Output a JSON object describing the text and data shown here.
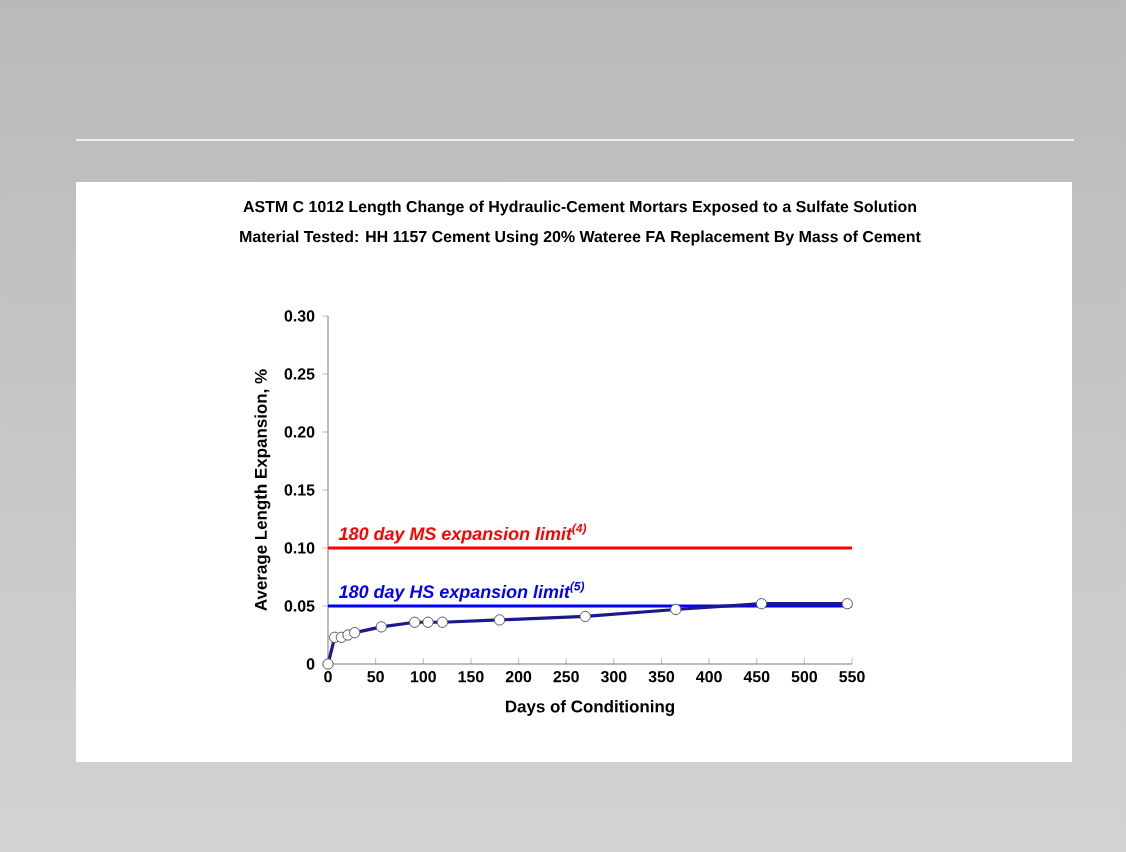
{
  "chart_data": {
    "type": "line",
    "title": "ASTM C 1012 Length Change of Hydraulic-Cement Mortars Exposed to a Sulfate Solution",
    "subtitle": "Material Tested: HH 1157 Cement Using 20% Wateree FA Replacement By Mass of Cement",
    "xlabel": "Days of Conditioning",
    "ylabel": "Average Length Expansion, %",
    "x": [
      0,
      7,
      14,
      21,
      28,
      56,
      91,
      105,
      120,
      180,
      270,
      365,
      455,
      545
    ],
    "series": [
      {
        "color": "#1a1a8c",
        "values": [
          0,
          0.023,
          0.023,
          0.025,
          0.027,
          0.032,
          0.036,
          0.036,
          0.036,
          0.038,
          0.041,
          0.047,
          0.052,
          0.052
        ]
      }
    ],
    "marker": "circle",
    "line_style": "solid",
    "xlim": [
      0,
      550
    ],
    "ylim": [
      0,
      0.3
    ],
    "xticks": [
      0,
      50,
      100,
      150,
      200,
      250,
      300,
      350,
      400,
      450,
      500,
      550
    ],
    "yticks": [
      0,
      {
        "value": 0.05,
        "label": "0.05"
      },
      {
        "value": 0.1,
        "label": "0.10"
      },
      {
        "value": 0.15,
        "label": "0.15"
      },
      {
        "value": 0.2,
        "label": "0.20"
      },
      {
        "value": 0.25,
        "label": "0.25"
      },
      {
        "value": 0.3,
        "label": "0.30"
      }
    ],
    "ref_lines": [
      {
        "axis": "y",
        "value": 0.1,
        "label": "180 day MS expansion limit$^{(4)}$",
        "color": "#ff0000"
      },
      {
        "axis": "y",
        "value": 0.05,
        "label": "180 day HS expansion limit$^{(5)}$",
        "color": "#0000ff"
      }
    ]
  }
}
